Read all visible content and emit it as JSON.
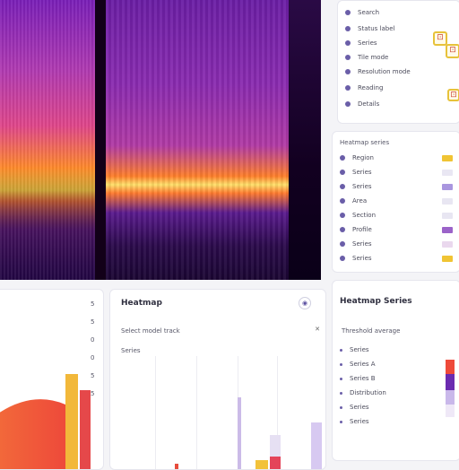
{
  "top_panel": {
    "items": [
      {
        "label": "Search"
      },
      {
        "label": "Status label"
      },
      {
        "label": "Series"
      },
      {
        "label": "Tile mode"
      },
      {
        "label": "Resolution mode"
      },
      {
        "label": "Reading"
      },
      {
        "label": "Details"
      }
    ],
    "badges": [
      {
        "text": "⊡"
      },
      {
        "text": "⊡"
      },
      {
        "text": "⊡"
      }
    ]
  },
  "legend_panel": {
    "title": "Heatmap series",
    "items": [
      {
        "label": "Region",
        "color": "#f0c434"
      },
      {
        "label": "Series",
        "color": "#e9e7f3"
      },
      {
        "label": "Series",
        "color": "#a996df"
      },
      {
        "label": "Area",
        "color": "#e8e6f2"
      },
      {
        "label": "Section",
        "color": "#e8e6f2"
      },
      {
        "label": "Profile",
        "color": "#9b63c9"
      },
      {
        "label": "Series",
        "color": "#ead8ee"
      },
      {
        "label": "Series",
        "color": "#f0c434"
      }
    ]
  },
  "bottom_left": {
    "tick_labels": [
      "5",
      "5",
      "0",
      "0",
      "5",
      "5"
    ]
  },
  "bottom_mid": {
    "title": "Heatmap",
    "subtitle": "Select model track",
    "sublabel": "Series",
    "icon_a": "◉",
    "icon_b": "✕"
  },
  "bottom_right": {
    "title": "Heatmap Series",
    "subtitle": "Threshold average",
    "items": [
      {
        "label": "Series"
      },
      {
        "label": "Series A"
      },
      {
        "label": "Series B"
      },
      {
        "label": "Distribution"
      },
      {
        "label": "Series"
      },
      {
        "label": "Series"
      }
    ],
    "scale_colors": [
      "#ee4a3a",
      "#6b2bb0",
      "#c9b8ea",
      "#efe8f7"
    ]
  },
  "colors": {
    "accent": "#6a5ea8",
    "heat_hot": "#ffd13b",
    "heat_mid": "#ff7a2e",
    "heat_cool": "#6b1ea5"
  }
}
